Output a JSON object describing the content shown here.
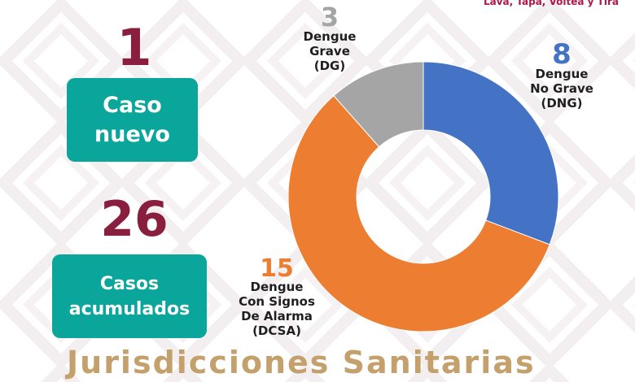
{
  "slogan": "Lava, Tapa, Voltea y Tira",
  "new_cases": {
    "number": "1",
    "label_line1": "Caso",
    "label_line2": "nuevo"
  },
  "total_cases": {
    "number": "26",
    "label_line1": "Casos",
    "label_line2": "acumulados"
  },
  "footer_title": "Jurisdicciones Sanitarias",
  "colors": {
    "teal": "#0aa69b",
    "maroon": "#8a1e3f",
    "blue": "#4472c4",
    "orange": "#ed7d31",
    "gray": "#a5a5a5",
    "gold": "#c3a06c"
  },
  "chart_data": {
    "type": "pie",
    "variant": "donut",
    "slices": [
      {
        "value": 8,
        "value_label": "8",
        "label_lines": [
          "Dengue",
          "No Grave",
          "(DNG)"
        ],
        "color": "#4472c4"
      },
      {
        "value": 15,
        "value_label": "15",
        "label_lines": [
          "Dengue",
          "Con Signos",
          "De Alarma",
          "(DCSA)"
        ],
        "color": "#ed7d31"
      },
      {
        "value": 3,
        "value_label": "3",
        "label_lines": [
          "Dengue",
          "Grave",
          "(DG)"
        ],
        "color": "#a5a5a5"
      }
    ]
  }
}
